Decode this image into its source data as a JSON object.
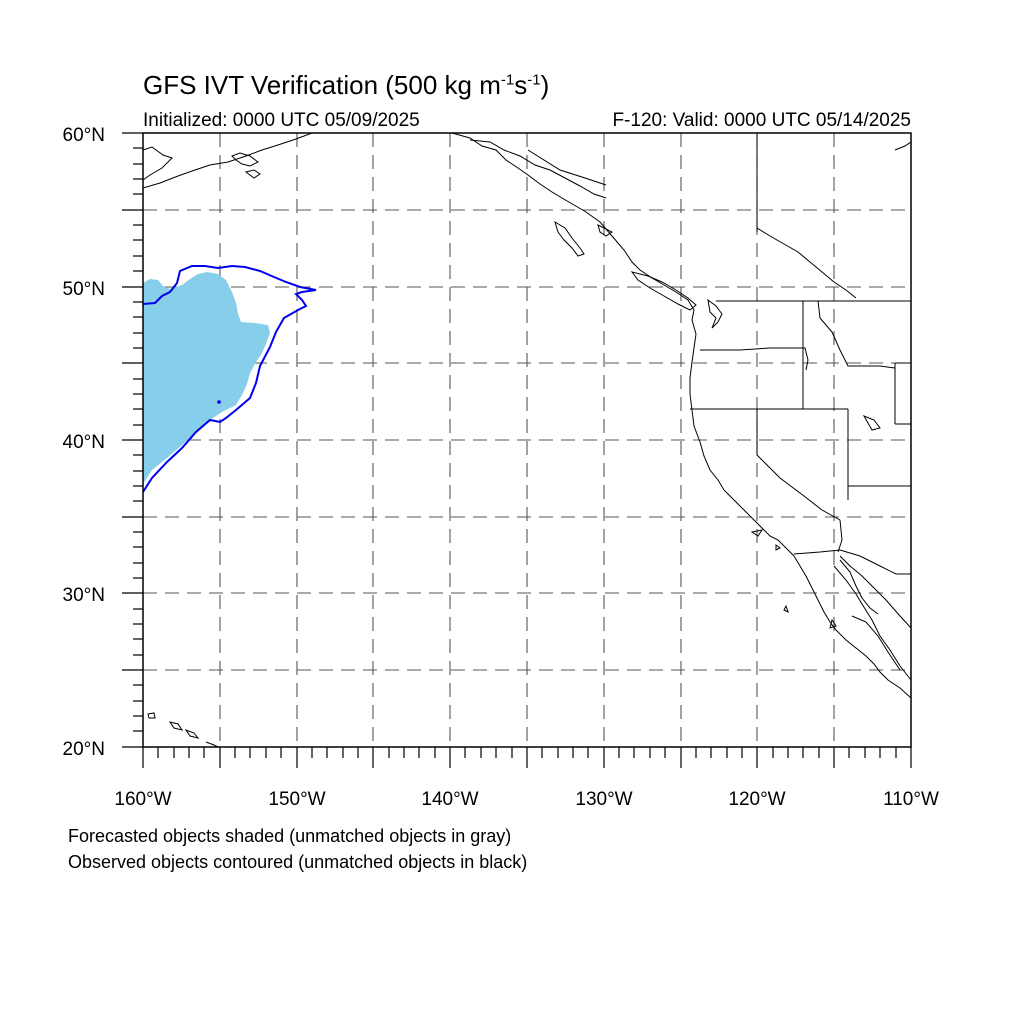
{
  "header": {
    "title_main": "GFS IVT Verification (500 kg m",
    "title_sup1": "-1",
    "title_mid": "s",
    "title_sup2": "-1",
    "title_end": ")",
    "initialized": "Initialized: 0000 UTC 05/09/2025",
    "valid": "F-120: Valid: 0000 UTC 05/14/2025"
  },
  "axes": {
    "lat_labels": [
      "60°N",
      "50°N",
      "40°N",
      "30°N",
      "20°N"
    ],
    "lon_labels": [
      "160°W",
      "150°W",
      "140°W",
      "130°W",
      "120°W",
      "110°W"
    ]
  },
  "footer": {
    "note_forecast": "Forecasted objects shaded (unmatched objects in gray)",
    "note_observed": "Observed objects contoured (unmatched objects in black)"
  },
  "colors": {
    "forecast_fill": "#87ceeb",
    "observed_contour": "#0000ee",
    "coastline": "#000000",
    "grid": "#555555"
  },
  "map_extent": {
    "lon_min": -160,
    "lon_max": -110,
    "lat_min": 20,
    "lat_max": 60
  }
}
